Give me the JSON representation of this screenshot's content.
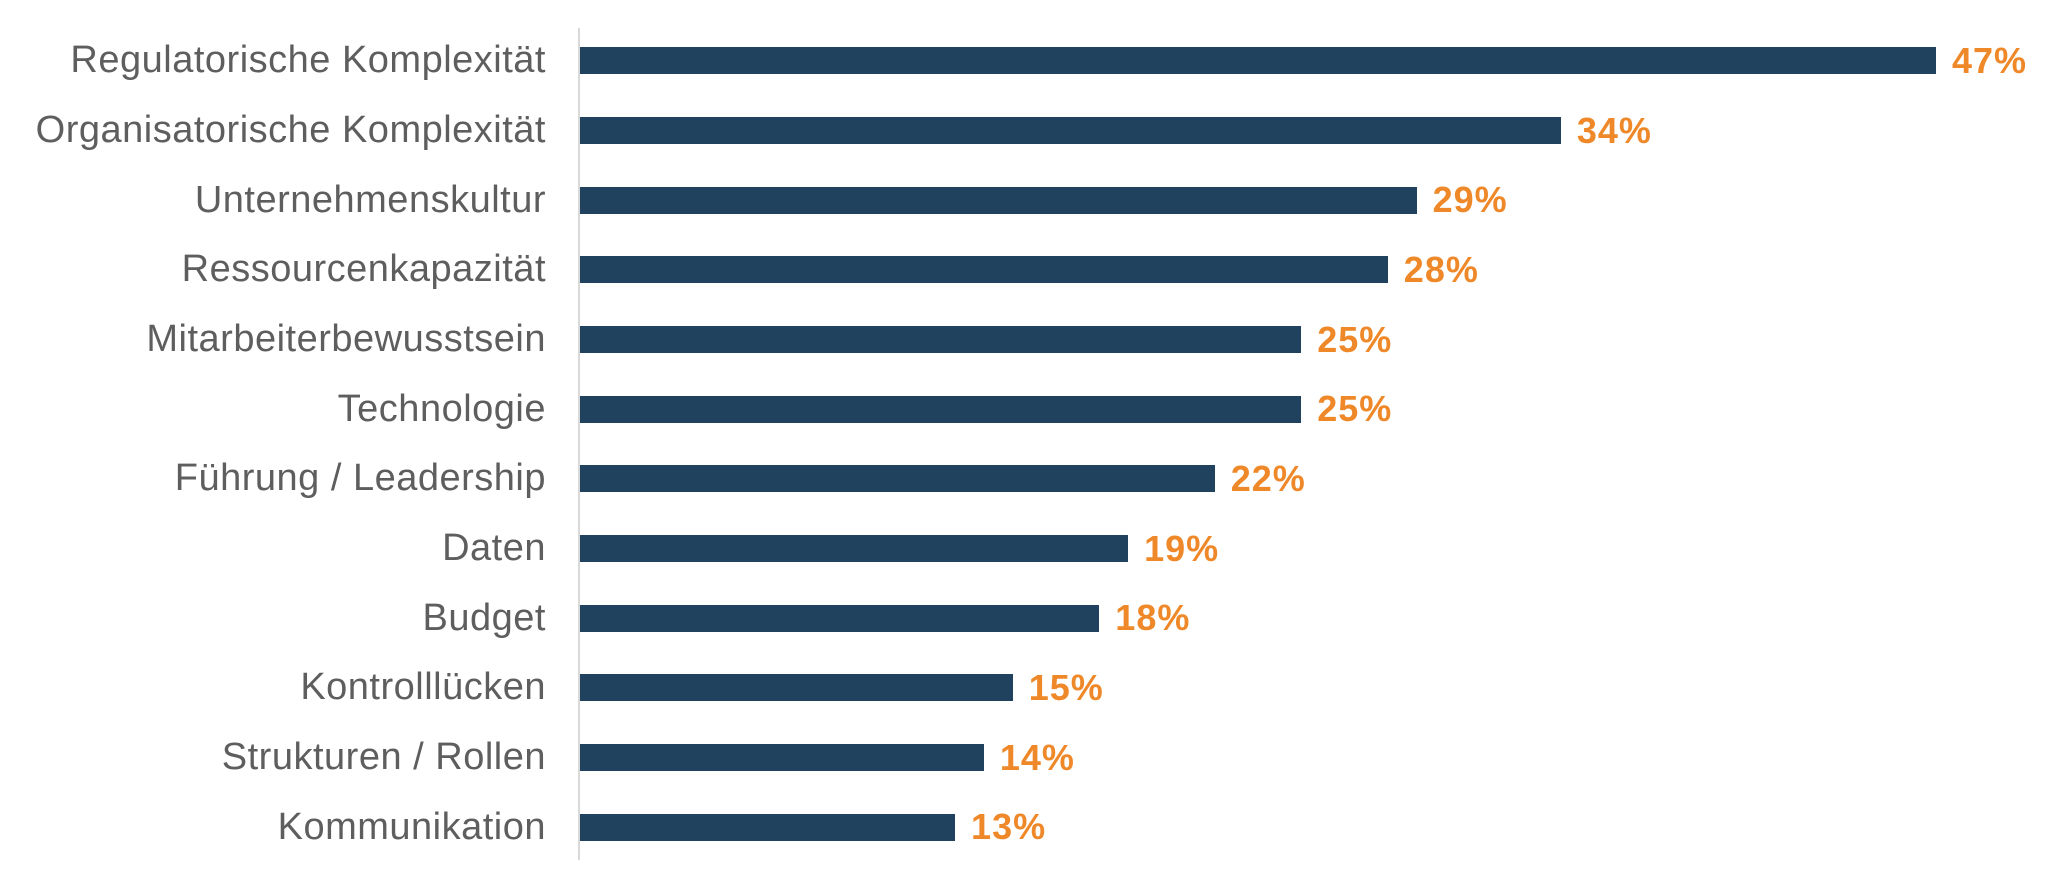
{
  "chart_data": {
    "type": "bar",
    "orientation": "horizontal",
    "title": "",
    "xlabel": "",
    "ylabel": "",
    "grid": false,
    "legend": false,
    "xlim": [
      0,
      50
    ],
    "categories": [
      "Regulatorische Komplexität",
      "Organisatorische Komplexität",
      "Unternehmenskultur",
      "Ressourcenkapazität",
      "Mitarbeiterbewusstsein",
      "Technologie",
      "Führung / Leadership",
      "Daten",
      "Budget",
      "Kontrolllücken",
      "Strukturen / Rollen",
      "Kommunikation"
    ],
    "values": [
      47,
      34,
      29,
      28,
      25,
      25,
      22,
      19,
      18,
      15,
      14,
      13
    ],
    "value_labels": [
      "47%",
      "34%",
      "29%",
      "28%",
      "25%",
      "25%",
      "22%",
      "19%",
      "18%",
      "15%",
      "14%",
      "13%"
    ],
    "value_suffix": "%",
    "colors": {
      "bar": "#21425e",
      "value_label": "#ef8829",
      "category_label": "#5e5e5e",
      "axis_line": "#d9d9d9",
      "background": "#ffffff"
    }
  }
}
